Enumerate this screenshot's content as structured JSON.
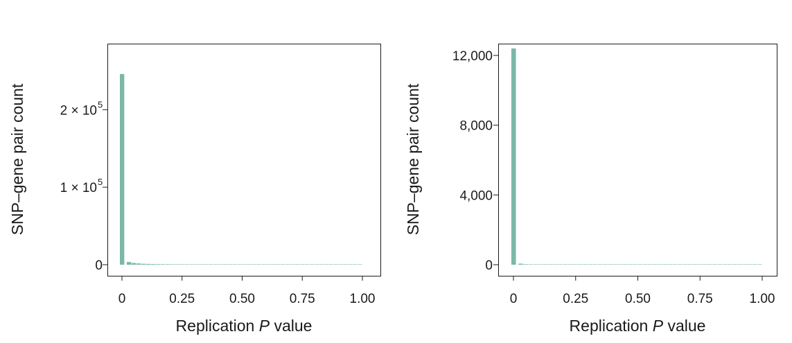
{
  "chart_data": [
    {
      "type": "bar",
      "panel": "left",
      "xlabel_prefix": "Replication ",
      "xlabel_var": "P",
      "xlabel_suffix": " value",
      "ylabel": "SNP–gene pair count",
      "xlim": [
        0,
        1
      ],
      "ylim": [
        0,
        270000
      ],
      "bin_width": 0.02,
      "x_ticks": [
        {
          "value": 0,
          "label": "0"
        },
        {
          "value": 0.25,
          "label": "0.25"
        },
        {
          "value": 0.5,
          "label": "0.50"
        },
        {
          "value": 0.75,
          "label": "0.75"
        },
        {
          "value": 1,
          "label": "1.00"
        }
      ],
      "y_ticks": [
        {
          "value": 0,
          "label": "0",
          "exp": ""
        },
        {
          "value": 100000,
          "label": "1 × 10",
          "exp": "5"
        },
        {
          "value": 200000,
          "label": "2 × 10",
          "exp": "5"
        }
      ],
      "values": [
        246000,
        3500,
        2200,
        1600,
        1200,
        1000,
        850,
        750,
        700,
        650,
        600,
        560,
        530,
        500,
        480,
        460,
        440,
        420,
        400,
        390,
        380,
        370,
        360,
        350,
        345,
        340,
        335,
        330,
        325,
        320,
        315,
        310,
        305,
        300,
        298,
        295,
        292,
        290,
        288,
        285,
        283,
        281,
        279,
        277,
        275,
        273,
        271,
        269,
        267,
        265
      ],
      "bar_color": "#7ab8a8"
    },
    {
      "type": "bar",
      "panel": "right",
      "xlabel_prefix": "Replication ",
      "xlabel_var": "P",
      "xlabel_suffix": " value",
      "ylabel": "SNP–gene pair count",
      "xlim": [
        0,
        1
      ],
      "ylim": [
        0,
        12000
      ],
      "bin_width": 0.02,
      "x_ticks": [
        {
          "value": 0,
          "label": "0"
        },
        {
          "value": 0.25,
          "label": "0.25"
        },
        {
          "value": 0.5,
          "label": "0.50"
        },
        {
          "value": 0.75,
          "label": "0.75"
        },
        {
          "value": 1,
          "label": "1.00"
        }
      ],
      "y_ticks": [
        {
          "value": 0,
          "label": "0",
          "exp": ""
        },
        {
          "value": 4000,
          "label": "4,000",
          "exp": ""
        },
        {
          "value": 8000,
          "label": "8,000",
          "exp": ""
        },
        {
          "value": 12000,
          "label": "12,000",
          "exp": ""
        }
      ],
      "values": [
        12400,
        60,
        30,
        20,
        15,
        12,
        10,
        9,
        8,
        8,
        7,
        7,
        6,
        6,
        6,
        5,
        5,
        5,
        5,
        5,
        5,
        4,
        4,
        4,
        4,
        4,
        4,
        4,
        4,
        4,
        4,
        3,
        3,
        3,
        3,
        3,
        3,
        3,
        3,
        3,
        3,
        3,
        3,
        3,
        3,
        3,
        3,
        3,
        3,
        3
      ],
      "bar_color": "#7ab8a8"
    }
  ]
}
